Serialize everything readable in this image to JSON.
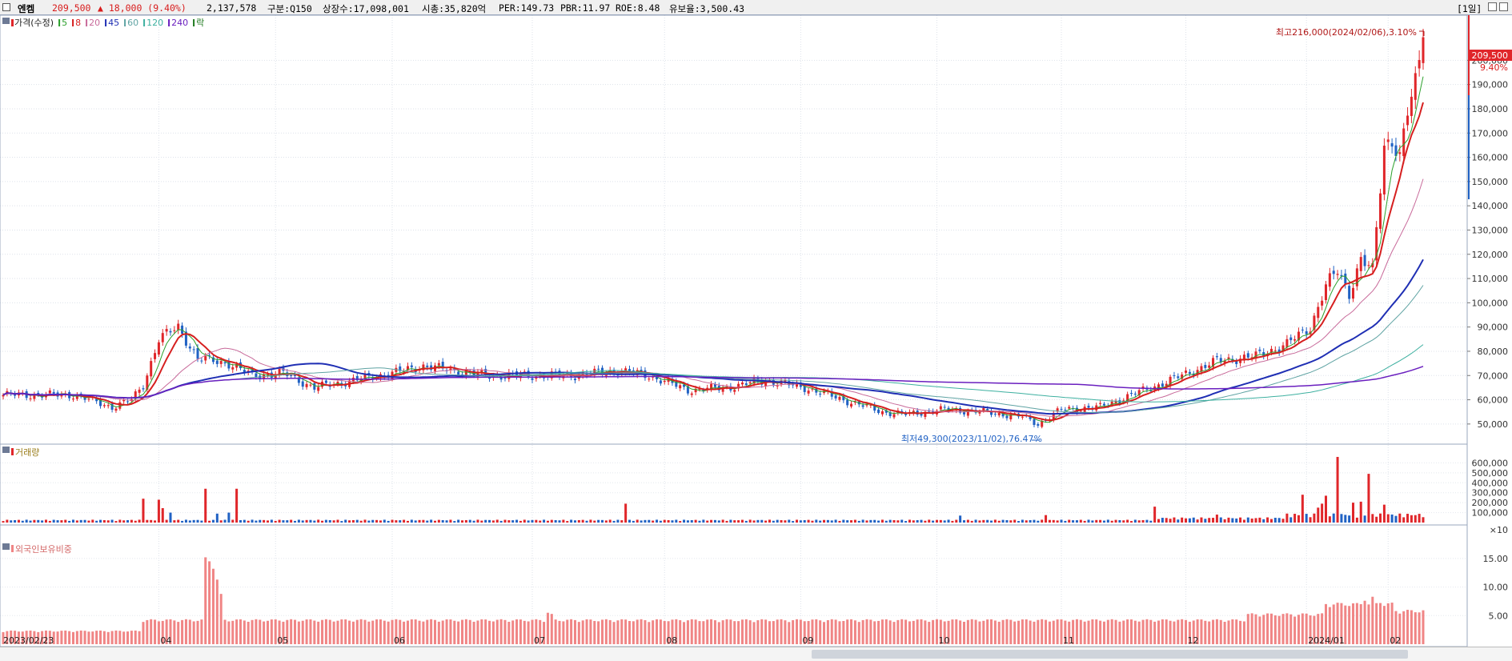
{
  "header": {
    "name": "엔켐",
    "price": "209,500",
    "change": "▲ 18,000 (9.40%)",
    "volume": "2,137,578",
    "sector": "구분:Q150",
    "shares": "상장수:17,098,001",
    "mktcap": "시총:35,820억",
    "per": "PER:149.73",
    "pbr": "PBR:11.97",
    "roe": "ROE:8.48",
    "reserve": "유보율:3,500.43",
    "period": "[1일]"
  },
  "legend": {
    "price": "가격(수정)",
    "ma": [
      {
        "label": "5",
        "color": "#2ca02c"
      },
      {
        "label": "8",
        "color": "#d61f1f"
      },
      {
        "label": "20",
        "color": "#c86a9a"
      },
      {
        "label": "45",
        "color": "#1f2fb4"
      },
      {
        "label": "60",
        "color": "#5fa3a3"
      },
      {
        "label": "120",
        "color": "#3db0a0"
      },
      {
        "label": "240",
        "color": "#6a1fbf"
      },
      {
        "label": "락",
        "color": "#1f7a1f"
      }
    ]
  },
  "annotations": {
    "high": "최고216,000(2024/02/06),3.10%",
    "low": "최저49,300(2023/11/02),76.47%",
    "last_price": "209,500",
    "last_pct": "9.40%"
  },
  "panels": {
    "volume": "거래량",
    "foreign": "외국인보유비중",
    "volume_unit": "×10"
  },
  "colors": {
    "up": "#e0262a",
    "down": "#2162c4",
    "foreign": "#f08585"
  },
  "chart_data": [
    {
      "type": "candlestick",
      "title": "가격(수정)",
      "x": [
        "2023/02/23",
        "04",
        "05",
        "06",
        "07",
        "08",
        "09",
        "10",
        "11",
        "12",
        "2024/01",
        "02"
      ],
      "y_ticks": [
        50000,
        60000,
        70000,
        80000,
        90000,
        100000,
        110000,
        120000,
        130000,
        140000,
        150000,
        160000,
        170000,
        180000,
        190000,
        200000
      ],
      "ylim": [
        45000,
        212000
      ],
      "series": [
        {
          "name": "가격(수정)",
          "close_knots": [
            [
              0,
              62000
            ],
            [
              18,
              62000
            ],
            [
              28,
              57000
            ],
            [
              33,
              60000
            ],
            [
              36,
              66000
            ],
            [
              40,
              85000
            ],
            [
              45,
              90000
            ],
            [
              50,
              77000
            ],
            [
              58,
              75000
            ],
            [
              64,
              70000
            ],
            [
              72,
              71000
            ],
            [
              80,
              65000
            ],
            [
              90,
              68000
            ],
            [
              100,
              71000
            ],
            [
              108,
              74000
            ],
            [
              116,
              72000
            ],
            [
              124,
              70000
            ],
            [
              134,
              70000
            ],
            [
              146,
              70000
            ],
            [
              158,
              72000
            ],
            [
              166,
              70000
            ],
            [
              176,
              64000
            ],
            [
              186,
              65000
            ],
            [
              196,
              68000
            ],
            [
              206,
              65000
            ],
            [
              216,
              60000
            ],
            [
              226,
              55000
            ],
            [
              232,
              54000
            ],
            [
              242,
              56000
            ],
            [
              252,
              55000
            ],
            [
              262,
              53000
            ],
            [
              266,
              50000
            ],
            [
              272,
              56000
            ],
            [
              282,
              57000
            ],
            [
              290,
              62000
            ],
            [
              300,
              68000
            ],
            [
              312,
              76000
            ],
            [
              322,
              78000
            ],
            [
              330,
              83000
            ],
            [
              336,
              90000
            ],
            [
              340,
              107000
            ],
            [
              343,
              113000
            ],
            [
              346,
              104000
            ],
            [
              349,
              118000
            ],
            [
              352,
              113000
            ],
            [
              355,
              165000
            ],
            [
              357,
              168000
            ],
            [
              359,
              160000
            ],
            [
              361,
              178000
            ],
            [
              363,
              190000
            ],
            [
              365,
              209500
            ]
          ]
        }
      ]
    },
    {
      "type": "bar",
      "title": "거래량",
      "y_ticks": [
        100000,
        200000,
        300000,
        400000,
        500000,
        600000
      ],
      "ylim": [
        0,
        700000
      ],
      "spikes": [
        [
          36,
          240000
        ],
        [
          40,
          230000
        ],
        [
          41,
          145000
        ],
        [
          43,
          100000
        ],
        [
          52,
          340000
        ],
        [
          55,
          90000
        ],
        [
          58,
          100000
        ],
        [
          60,
          340000
        ],
        [
          160,
          190000
        ],
        [
          246,
          70000
        ],
        [
          268,
          75000
        ],
        [
          296,
          160000
        ],
        [
          312,
          80000
        ],
        [
          334,
          280000
        ],
        [
          338,
          150000
        ],
        [
          339,
          190000
        ],
        [
          340,
          270000
        ],
        [
          343,
          660000
        ],
        [
          347,
          200000
        ],
        [
          349,
          210000
        ],
        [
          351,
          490000
        ],
        [
          355,
          180000
        ]
      ]
    },
    {
      "type": "bar",
      "title": "외국인보유비중",
      "y_ticks": [
        5,
        10,
        15
      ],
      "ylim": [
        0,
        16.8
      ],
      "spikes": [
        [
          52,
          15.2
        ],
        [
          53,
          14.5
        ],
        [
          54,
          13.2
        ],
        [
          55,
          11.3
        ],
        [
          56,
          8.8
        ],
        [
          140,
          5.5
        ],
        [
          141,
          5.3
        ],
        [
          348,
          7.2
        ],
        [
          350,
          7.6
        ],
        [
          352,
          8.3
        ],
        [
          354,
          7.2
        ]
      ]
    }
  ]
}
